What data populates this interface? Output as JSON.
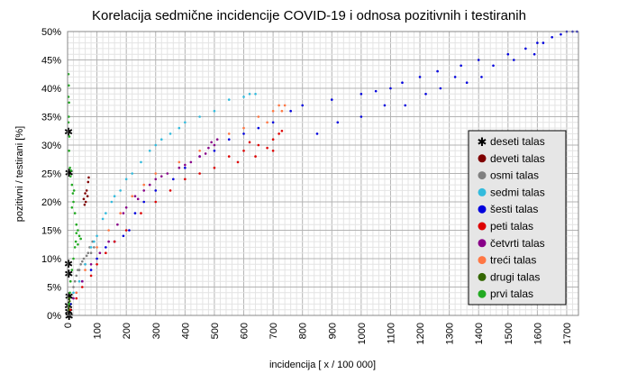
{
  "chart_data": {
    "type": "scatter",
    "title": "Korelacija sedmične incidencije COVID-19 i odnosa pozitivnih i testiranih",
    "xlabel": "incidencija [ x / 100 000]",
    "ylabel": "pozitivni / testirani [%]",
    "xlim": [
      0,
      1740
    ],
    "ylim": [
      0,
      50
    ],
    "x_ticks": [
      0,
      100,
      200,
      300,
      400,
      500,
      600,
      700,
      800,
      900,
      1000,
      1100,
      1200,
      1300,
      1400,
      1500,
      1600,
      1700
    ],
    "y_ticks": [
      "0%",
      "5%",
      "10%",
      "15%",
      "20%",
      "25%",
      "30%",
      "35%",
      "40%",
      "45%",
      "50%"
    ],
    "y_tick_values": [
      0,
      5,
      10,
      15,
      20,
      25,
      30,
      35,
      40,
      45,
      50
    ],
    "grid": true,
    "legend_position": "right",
    "series": [
      {
        "name": "deseti talas",
        "color": "#000000",
        "marker": "asterisk",
        "points": [
          [
            3,
            32.5
          ],
          [
            5,
            25.2
          ],
          [
            3,
            9.2
          ],
          [
            4,
            7.5
          ],
          [
            5,
            3.5
          ],
          [
            3,
            1.8
          ],
          [
            4,
            0.8
          ],
          [
            5,
            0.0
          ]
        ]
      },
      {
        "name": "deveti talas",
        "color": "#7f0000",
        "marker": "dot",
        "points": [
          [
            55,
            20.5
          ],
          [
            60,
            21.5
          ],
          [
            62,
            20.0
          ],
          [
            65,
            22.0
          ],
          [
            70,
            23.5
          ],
          [
            72,
            24.3
          ],
          [
            58,
            19.5
          ],
          [
            68,
            21.0
          ]
        ]
      },
      {
        "name": "osmi talas",
        "color": "#808080",
        "marker": "dot",
        "points": [
          [
            20,
            5
          ],
          [
            30,
            7
          ],
          [
            40,
            8
          ],
          [
            50,
            9.5
          ],
          [
            55,
            10
          ],
          [
            60,
            9
          ],
          [
            70,
            11
          ],
          [
            75,
            12
          ],
          [
            80,
            11
          ],
          [
            45,
            9
          ],
          [
            35,
            8
          ],
          [
            90,
            12
          ],
          [
            65,
            10.5
          ],
          [
            85,
            13
          ],
          [
            25,
            6
          ]
        ]
      },
      {
        "name": "sedmi talas",
        "color": "#33bbdd",
        "marker": "dot",
        "points": [
          [
            20,
            4
          ],
          [
            40,
            6
          ],
          [
            60,
            9
          ],
          [
            80,
            12
          ],
          [
            100,
            14
          ],
          [
            120,
            17
          ],
          [
            150,
            20
          ],
          [
            180,
            22
          ],
          [
            200,
            24
          ],
          [
            250,
            27
          ],
          [
            280,
            29
          ],
          [
            300,
            30
          ],
          [
            350,
            32
          ],
          [
            400,
            34
          ],
          [
            450,
            35
          ],
          [
            500,
            36
          ],
          [
            550,
            38
          ],
          [
            600,
            38.5
          ],
          [
            620,
            39
          ],
          [
            640,
            39
          ],
          [
            90,
            13
          ],
          [
            130,
            18
          ],
          [
            160,
            21
          ],
          [
            220,
            25
          ],
          [
            320,
            31
          ],
          [
            380,
            33
          ]
        ]
      },
      {
        "name": "šesti talas",
        "color": "#0000dd",
        "marker": "dot",
        "points": [
          [
            10,
            2
          ],
          [
            30,
            4
          ],
          [
            50,
            6
          ],
          [
            80,
            8
          ],
          [
            100,
            10
          ],
          [
            130,
            12
          ],
          [
            160,
            13
          ],
          [
            190,
            14
          ],
          [
            210,
            15
          ],
          [
            230,
            18
          ],
          [
            260,
            20
          ],
          [
            300,
            22
          ],
          [
            360,
            24
          ],
          [
            400,
            26
          ],
          [
            450,
            28
          ],
          [
            500,
            29
          ],
          [
            550,
            31
          ],
          [
            600,
            32
          ],
          [
            650,
            33
          ],
          [
            700,
            34
          ],
          [
            760,
            36
          ],
          [
            800,
            37
          ],
          [
            850,
            32
          ],
          [
            900,
            38
          ],
          [
            920,
            34
          ],
          [
            1000,
            39
          ],
          [
            1000,
            35
          ],
          [
            1050,
            39.5
          ],
          [
            1080,
            37
          ],
          [
            1100,
            40
          ],
          [
            1140,
            41
          ],
          [
            1150,
            37
          ],
          [
            1200,
            42
          ],
          [
            1220,
            39
          ],
          [
            1260,
            43
          ],
          [
            1270,
            40
          ],
          [
            1320,
            42
          ],
          [
            1340,
            44
          ],
          [
            1360,
            41
          ],
          [
            1400,
            45
          ],
          [
            1410,
            42
          ],
          [
            1450,
            44
          ],
          [
            1500,
            46
          ],
          [
            1520,
            45
          ],
          [
            1560,
            47
          ],
          [
            1590,
            46
          ],
          [
            1600,
            48
          ],
          [
            1620,
            48
          ],
          [
            1650,
            49
          ],
          [
            1680,
            49.5
          ],
          [
            1700,
            50
          ],
          [
            1720,
            50
          ],
          [
            1735,
            50
          ]
        ]
      },
      {
        "name": "peti talas",
        "color": "#dd0000",
        "marker": "dot",
        "points": [
          [
            10,
            1
          ],
          [
            30,
            3
          ],
          [
            50,
            5
          ],
          [
            80,
            7
          ],
          [
            100,
            9
          ],
          [
            130,
            11
          ],
          [
            160,
            13
          ],
          [
            200,
            15
          ],
          [
            250,
            18
          ],
          [
            300,
            20
          ],
          [
            350,
            22
          ],
          [
            400,
            24
          ],
          [
            450,
            25
          ],
          [
            500,
            26
          ],
          [
            550,
            28
          ],
          [
            600,
            29
          ],
          [
            650,
            30
          ],
          [
            700,
            31
          ],
          [
            720,
            32
          ],
          [
            730,
            32.5
          ],
          [
            680,
            29.5
          ],
          [
            640,
            28
          ],
          [
            580,
            27
          ],
          [
            620,
            30.5
          ],
          [
            700,
            29
          ]
        ]
      },
      {
        "name": "četvrti talas",
        "color": "#880088",
        "marker": "dot",
        "points": [
          [
            20,
            3
          ],
          [
            50,
            6
          ],
          [
            80,
            9
          ],
          [
            110,
            11
          ],
          [
            140,
            13
          ],
          [
            170,
            16
          ],
          [
            200,
            19
          ],
          [
            230,
            21
          ],
          [
            260,
            22
          ],
          [
            300,
            24
          ],
          [
            340,
            25
          ],
          [
            380,
            26
          ],
          [
            420,
            27
          ],
          [
            450,
            28
          ],
          [
            480,
            29.5
          ],
          [
            500,
            30
          ],
          [
            510,
            31
          ],
          [
            490,
            30.5
          ],
          [
            470,
            28.5
          ],
          [
            400,
            26.5
          ],
          [
            320,
            24.5
          ],
          [
            280,
            23
          ],
          [
            240,
            20.5
          ],
          [
            190,
            18
          ]
        ]
      },
      {
        "name": "treći talas",
        "color": "#ff7744",
        "marker": "dot",
        "points": [
          [
            30,
            4
          ],
          [
            60,
            8
          ],
          [
            100,
            12
          ],
          [
            140,
            15
          ],
          [
            180,
            18
          ],
          [
            220,
            21
          ],
          [
            260,
            23
          ],
          [
            300,
            25
          ],
          [
            380,
            27
          ],
          [
            450,
            29
          ],
          [
            550,
            32
          ],
          [
            600,
            33
          ],
          [
            650,
            35
          ],
          [
            700,
            36
          ],
          [
            720,
            37
          ],
          [
            740,
            37
          ],
          [
            730,
            36
          ],
          [
            680,
            34
          ]
        ]
      },
      {
        "name": "drugi talas",
        "color": "#336600",
        "marker": "dot",
        "points": [
          [
            3,
            1
          ],
          [
            5,
            2
          ],
          [
            6,
            3
          ],
          [
            4,
            1.5
          ],
          [
            7,
            2.5
          ]
        ]
      },
      {
        "name": "prvi talas",
        "color": "#22aa22",
        "marker": "dot",
        "points": [
          [
            3,
            42.5
          ],
          [
            4,
            40.5
          ],
          [
            3,
            38.5
          ],
          [
            5,
            37.5
          ],
          [
            4,
            35
          ],
          [
            3,
            34
          ],
          [
            6,
            31.5
          ],
          [
            5,
            29
          ],
          [
            8,
            26
          ],
          [
            10,
            24.5
          ],
          [
            12,
            25.5
          ],
          [
            15,
            23
          ],
          [
            18,
            21.5
          ],
          [
            20,
            20
          ],
          [
            15,
            19
          ],
          [
            25,
            18
          ],
          [
            30,
            16
          ],
          [
            35,
            15
          ],
          [
            40,
            14
          ],
          [
            45,
            13.5
          ],
          [
            35,
            12.5
          ],
          [
            25,
            12
          ],
          [
            20,
            10
          ],
          [
            15,
            8
          ],
          [
            10,
            6
          ],
          [
            8,
            4
          ],
          [
            5,
            2
          ],
          [
            30,
            14.5
          ],
          [
            22,
            22
          ],
          [
            28,
            13
          ]
        ]
      }
    ]
  }
}
